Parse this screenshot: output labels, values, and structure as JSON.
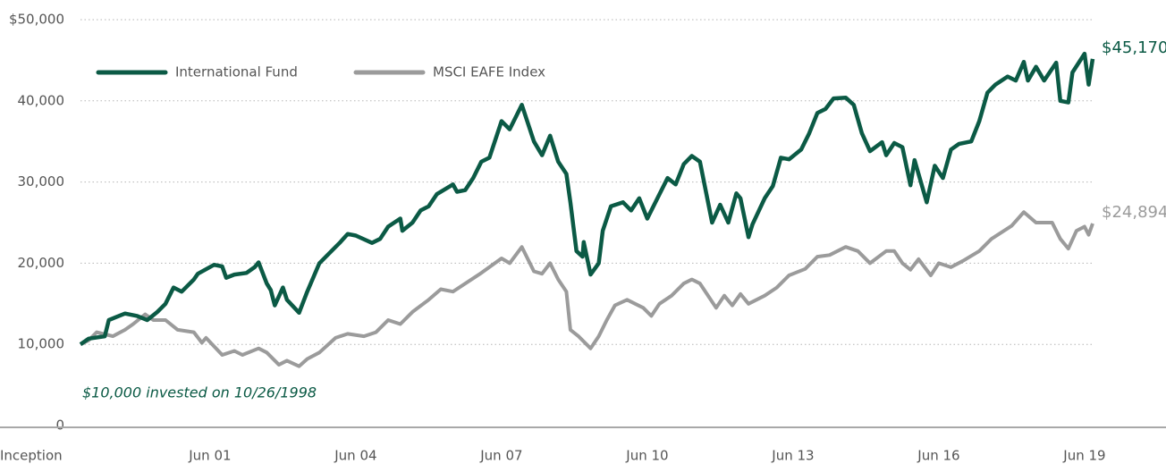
{
  "chart_data": {
    "type": "line",
    "annotation": "$10,000 invested on 10/26/1998",
    "xlim": [
      0,
      250
    ],
    "xticks": [
      {
        "value": 0,
        "label": "Inception"
      },
      {
        "value": 32,
        "label": "Jun 01"
      },
      {
        "value": 68,
        "label": "Jun 04"
      },
      {
        "value": 104,
        "label": "Jun 07"
      },
      {
        "value": 140,
        "label": "Jun 10"
      },
      {
        "value": 176,
        "label": "Jun 13"
      },
      {
        "value": 212,
        "label": "Jun 16"
      },
      {
        "value": 248,
        "label": "Jun 19"
      }
    ],
    "ylim": [
      0,
      50000
    ],
    "yticks": [
      0,
      {
        "value": 10000,
        "label": "10,000"
      },
      {
        "value": 20000,
        "label": "20,000"
      },
      {
        "value": 30000,
        "label": "30,000"
      },
      {
        "value": 40000,
        "label": "40,000"
      },
      {
        "value": 50000,
        "label": "$50,000"
      }
    ],
    "grid": true,
    "legend": "top-left",
    "series": [
      {
        "name": "International Fund",
        "color": "#0b5a45",
        "end_label": "$45,170",
        "x": [
          0,
          2,
          6,
          7,
          11,
          14,
          16.5,
          19,
          21,
          23,
          25,
          28,
          29,
          33,
          35,
          36,
          38,
          41,
          43,
          44,
          46,
          47,
          48,
          50,
          51,
          54,
          56,
          59,
          62,
          64,
          66,
          68,
          72,
          74,
          76,
          79,
          79.5,
          82,
          84,
          86,
          88,
          92,
          93,
          95,
          97,
          99,
          101,
          104,
          106,
          109,
          112,
          114,
          116,
          118,
          120,
          121,
          122.5,
          124,
          124.3,
          126,
          128,
          129,
          131,
          134,
          136,
          138,
          140,
          142,
          145,
          147,
          149,
          151,
          153,
          156,
          158,
          160,
          162,
          163,
          165,
          166,
          169,
          171,
          173,
          175,
          178,
          180,
          182,
          184,
          186,
          189,
          191,
          193,
          195,
          198,
          199,
          201,
          203,
          205,
          206,
          209,
          211,
          213,
          215,
          217,
          220,
          222,
          224,
          226,
          229,
          231,
          233,
          234,
          236,
          238,
          241,
          242,
          244,
          245,
          248,
          249,
          250
        ],
        "values": [
          10000,
          10700,
          11000,
          13000,
          13800,
          13500,
          13000,
          14000,
          15000,
          17000,
          16500,
          18000,
          18700,
          19800,
          19600,
          18200,
          18600,
          18800,
          19500,
          20100,
          17500,
          16700,
          14800,
          17000,
          15500,
          13900,
          16500,
          20000,
          21500,
          22500,
          23600,
          23400,
          22500,
          23000,
          24500,
          25500,
          24000,
          25000,
          26500,
          27000,
          28500,
          29700,
          28800,
          29000,
          30500,
          32500,
          33000,
          37500,
          36500,
          39500,
          35000,
          33300,
          35700,
          32500,
          31000,
          27500,
          21500,
          20800,
          22600,
          18600,
          20000,
          24000,
          27000,
          27500,
          26500,
          28000,
          25500,
          27500,
          30500,
          29700,
          32200,
          33200,
          32500,
          25000,
          27200,
          25000,
          28600,
          28000,
          23200,
          24800,
          28000,
          29500,
          33000,
          32800,
          34000,
          36000,
          38500,
          39000,
          40300,
          40400,
          39500,
          36000,
          33800,
          34900,
          33300,
          34800,
          34300,
          29600,
          32700,
          27500,
          32000,
          30500,
          34000,
          34700,
          35000,
          37500,
          41000,
          42000,
          43000,
          42500,
          44800,
          42500,
          44200,
          42500,
          44700,
          40000,
          39800,
          43500,
          45800,
          42000,
          45170
        ]
      },
      {
        "name": "MSCI EAFE Index",
        "color": "#9b9b9b",
        "end_label": "$24,894",
        "x": [
          0,
          2,
          4,
          8,
          11,
          13,
          16,
          18,
          21,
          24,
          28,
          30,
          31,
          35,
          38,
          40,
          44,
          46,
          49,
          51,
          54,
          56,
          59,
          63,
          66,
          70,
          73,
          76,
          79,
          82,
          86,
          89,
          92,
          99,
          104,
          106,
          109,
          112,
          114,
          116,
          118,
          120,
          121,
          123,
          126,
          128,
          130,
          132,
          135,
          137,
          139,
          141,
          143,
          146,
          149,
          151,
          153,
          157,
          159,
          161,
          163,
          165,
          169,
          172,
          175,
          179,
          182,
          185,
          189,
          192,
          195,
          199,
          201,
          203,
          205,
          207,
          210,
          212,
          215,
          218,
          222,
          225,
          230,
          233,
          236,
          240,
          242,
          244,
          246,
          248,
          249,
          250
        ],
        "values": [
          10000,
          10500,
          11500,
          11000,
          11800,
          12500,
          13700,
          13000,
          13000,
          11800,
          11500,
          10200,
          10800,
          8700,
          9200,
          8700,
          9500,
          9000,
          7500,
          8000,
          7300,
          8200,
          9000,
          10800,
          11300,
          11000,
          11500,
          13000,
          12500,
          14000,
          15500,
          16800,
          16500,
          18800,
          20600,
          20000,
          22000,
          19000,
          18700,
          20000,
          18000,
          16500,
          11800,
          11000,
          9500,
          11000,
          13000,
          14800,
          15500,
          15000,
          14500,
          13500,
          15000,
          16000,
          17500,
          18000,
          17500,
          14500,
          16000,
          14800,
          16200,
          15000,
          16000,
          17000,
          18500,
          19300,
          20800,
          21000,
          22000,
          21500,
          20000,
          21500,
          21500,
          20000,
          19200,
          20500,
          18500,
          20000,
          19500,
          20300,
          21500,
          23000,
          24600,
          26300,
          25000,
          25000,
          23000,
          21800,
          24000,
          24500,
          23500,
          24894
        ]
      }
    ]
  }
}
